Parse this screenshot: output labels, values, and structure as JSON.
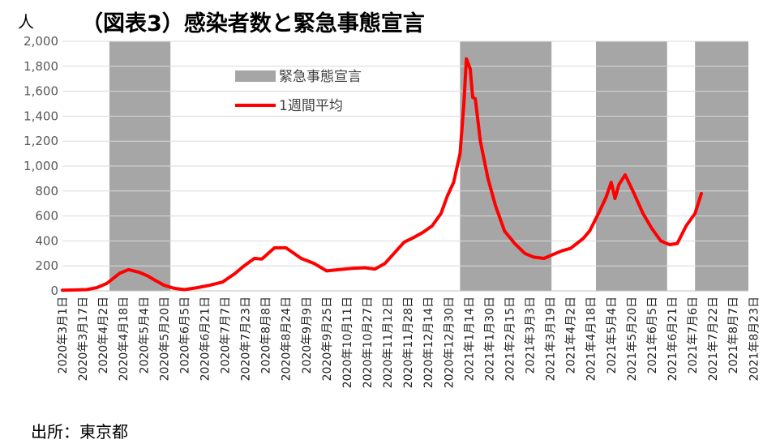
{
  "chart_data": {
    "type": "line",
    "title": "（図表3）感染者数と緊急事態宣言",
    "y_unit": "人",
    "source": "出所：東京都",
    "ylim": [
      0,
      2000
    ],
    "yticks": [
      "0",
      "200",
      "400",
      "600",
      "800",
      "1,000",
      "1,200",
      "1,400",
      "1,600",
      "1,800",
      "2,000"
    ],
    "grid": true,
    "legend_position": "top-center",
    "x_range": [
      "2020-03-01",
      "2021-08-23"
    ],
    "x_tick_dates": [
      "2020-03-01",
      "2020-03-17",
      "2020-04-02",
      "2020-04-18",
      "2020-05-04",
      "2020-05-20",
      "2020-06-05",
      "2020-06-21",
      "2020-07-07",
      "2020-07-23",
      "2020-08-08",
      "2020-08-24",
      "2020-09-09",
      "2020-09-25",
      "2020-10-11",
      "2020-10-27",
      "2020-11-12",
      "2020-11-28",
      "2020-12-14",
      "2020-12-30",
      "2021-01-15",
      "2021-01-31",
      "2021-02-16",
      "2021-03-04",
      "2021-03-20",
      "2021-04-05",
      "2021-04-21",
      "2021-05-07",
      "2021-05-23",
      "2021-06-08",
      "2021-06-24",
      "2021-07-10",
      "2021-07-26",
      "2021-08-11",
      "2021-08-27"
    ],
    "x_tick_labels": [
      "2020年3月1日",
      "2020年3月17日",
      "2020年4月2日",
      "2020年4月18日",
      "2020年5月4日",
      "2020年5月20日",
      "2020年6月5日",
      "2020年6月21日",
      "2020年7月7日",
      "2020年7月23日",
      "2020年8月8日",
      "2020年8月24日",
      "2020年9月9日",
      "2020年9月25日",
      "2020年10月11日",
      "2020年10月27日",
      "2020年11月12日",
      "2020年11月28日",
      "2020年12月14日",
      "2020年12月30日",
      "2021年1月14日",
      "2021年1月30日",
      "2021年2月15日",
      "2021年3月3日",
      "2021年3月19日",
      "2021年4月2日",
      "2021年4月18日",
      "2021年5月4日",
      "2021年5月20日",
      "2021年6月5日",
      "2021年6月21日",
      "2021年7月6日",
      "2021年7月22日",
      "2021年8月7日",
      "2021年8月23日"
    ],
    "series": [
      {
        "name": "緊急事態宣言",
        "type": "band",
        "color": "#a6a6a6",
        "periods": [
          [
            "2020-04-07",
            "2020-05-25"
          ],
          [
            "2021-01-08",
            "2021-03-21"
          ],
          [
            "2021-04-25",
            "2021-06-20"
          ],
          [
            "2021-07-12",
            "2021-08-31"
          ]
        ]
      },
      {
        "name": "1週間平均",
        "type": "line",
        "color": "#ff0000",
        "x": [
          "2020-03-01",
          "2020-03-20",
          "2020-03-28",
          "2020-04-05",
          "2020-04-10",
          "2020-04-15",
          "2020-04-22",
          "2020-04-30",
          "2020-05-07",
          "2020-05-12",
          "2020-05-20",
          "2020-05-28",
          "2020-06-05",
          "2020-06-15",
          "2020-06-25",
          "2020-07-05",
          "2020-07-15",
          "2020-07-22",
          "2020-07-30",
          "2020-08-05",
          "2020-08-10",
          "2020-08-15",
          "2020-08-24",
          "2020-09-05",
          "2020-09-15",
          "2020-09-25",
          "2020-10-05",
          "2020-10-15",
          "2020-10-25",
          "2020-11-02",
          "2020-11-10",
          "2020-11-17",
          "2020-11-25",
          "2020-12-03",
          "2020-12-10",
          "2020-12-17",
          "2020-12-24",
          "2020-12-29",
          "2021-01-03",
          "2021-01-08",
          "2021-01-11",
          "2021-01-13",
          "2021-01-16",
          "2021-01-18",
          "2021-01-20",
          "2021-01-24",
          "2021-01-30",
          "2021-02-05",
          "2021-02-12",
          "2021-02-20",
          "2021-02-28",
          "2021-03-07",
          "2021-03-15",
          "2021-03-22",
          "2021-03-29",
          "2021-04-05",
          "2021-04-10",
          "2021-04-15",
          "2021-04-20",
          "2021-04-27",
          "2021-05-03",
          "2021-05-07",
          "2021-05-10",
          "2021-05-13",
          "2021-05-18",
          "2021-05-25",
          "2021-06-01",
          "2021-06-08",
          "2021-06-15",
          "2021-06-22",
          "2021-06-28",
          "2021-07-05",
          "2021-07-12",
          "2021-07-17"
        ],
        "y": [
          5,
          10,
          25,
          60,
          100,
          140,
          170,
          150,
          120,
          90,
          45,
          20,
          10,
          25,
          45,
          70,
          140,
          200,
          260,
          255,
          300,
          345,
          345,
          260,
          220,
          160,
          170,
          180,
          185,
          175,
          220,
          300,
          390,
          430,
          470,
          520,
          620,
          760,
          870,
          1100,
          1500,
          1860,
          1780,
          1550,
          1540,
          1200,
          900,
          680,
          480,
          380,
          300,
          270,
          260,
          290,
          320,
          340,
          380,
          420,
          480,
          620,
          750,
          870,
          740,
          850,
          930,
          780,
          620,
          500,
          400,
          370,
          380,
          520,
          620,
          780
        ]
      }
    ]
  }
}
